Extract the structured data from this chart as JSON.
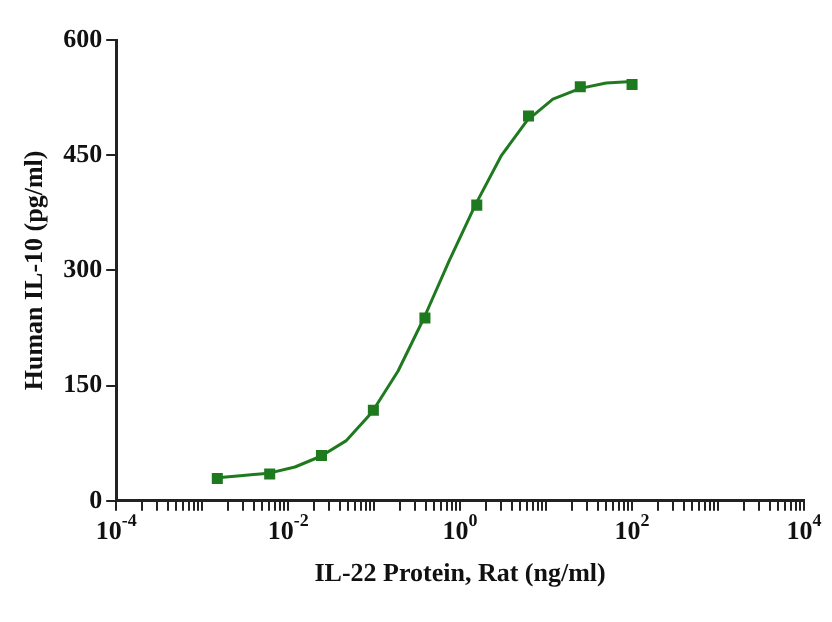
{
  "chart_data": {
    "type": "scatter",
    "xlabel": "IL-22 Protein, Rat (ng/ml)",
    "ylabel": "Human IL-10 (pg/ml)",
    "log": "x",
    "grid": false,
    "legend": false,
    "xlim": [
      0.0001,
      10000
    ],
    "ylim": [
      0,
      600
    ],
    "yticks": [
      0,
      150,
      300,
      450,
      600
    ],
    "xticks": [
      {
        "value": 0.0001,
        "label": "10$^{-4}$"
      },
      {
        "value": 0.0002,
        "label": null
      },
      {
        "value": 0.0003,
        "label": null
      },
      {
        "value": 0.0004,
        "label": null
      },
      {
        "value": 0.0005,
        "label": null
      },
      {
        "value": 0.0006,
        "label": null
      },
      {
        "value": 0.0007,
        "label": null
      },
      {
        "value": 0.0008,
        "label": null
      },
      {
        "value": 0.0009,
        "label": null
      },
      {
        "value": 0.001,
        "label": null
      },
      {
        "value": 0.002,
        "label": null
      },
      {
        "value": 0.003,
        "label": null
      },
      {
        "value": 0.004,
        "label": null
      },
      {
        "value": 0.005,
        "label": null
      },
      {
        "value": 0.006,
        "label": null
      },
      {
        "value": 0.007,
        "label": null
      },
      {
        "value": 0.008,
        "label": null
      },
      {
        "value": 0.009,
        "label": null
      },
      {
        "value": 0.01,
        "label": "10$^{-2}$"
      },
      {
        "value": 0.02,
        "label": null
      },
      {
        "value": 0.03,
        "label": null
      },
      {
        "value": 0.04,
        "label": null
      },
      {
        "value": 0.05,
        "label": null
      },
      {
        "value": 0.06,
        "label": null
      },
      {
        "value": 0.07,
        "label": null
      },
      {
        "value": 0.08,
        "label": null
      },
      {
        "value": 0.09,
        "label": null
      },
      {
        "value": 0.1,
        "label": null
      },
      {
        "value": 0.2,
        "label": null
      },
      {
        "value": 0.3,
        "label": null
      },
      {
        "value": 0.4,
        "label": null
      },
      {
        "value": 0.5,
        "label": null
      },
      {
        "value": 0.6,
        "label": null
      },
      {
        "value": 0.7,
        "label": null
      },
      {
        "value": 0.8,
        "label": null
      },
      {
        "value": 0.9,
        "label": null
      },
      {
        "value": 1,
        "label": "10$^{0}$"
      },
      {
        "value": 2,
        "label": null
      },
      {
        "value": 3,
        "label": null
      },
      {
        "value": 4,
        "label": null
      },
      {
        "value": 5,
        "label": null
      },
      {
        "value": 6,
        "label": null
      },
      {
        "value": 7,
        "label": null
      },
      {
        "value": 8,
        "label": null
      },
      {
        "value": 9,
        "label": null
      },
      {
        "value": 10,
        "label": null
      },
      {
        "value": 20,
        "label": null
      },
      {
        "value": 30,
        "label": null
      },
      {
        "value": 40,
        "label": null
      },
      {
        "value": 50,
        "label": null
      },
      {
        "value": 60,
        "label": null
      },
      {
        "value": 70,
        "label": null
      },
      {
        "value": 80,
        "label": null
      },
      {
        "value": 90,
        "label": null
      },
      {
        "value": 100,
        "label": "10$^{2}$"
      },
      {
        "value": 200,
        "label": null
      },
      {
        "value": 300,
        "label": null
      },
      {
        "value": 400,
        "label": null
      },
      {
        "value": 500,
        "label": null
      },
      {
        "value": 600,
        "label": null
      },
      {
        "value": 700,
        "label": null
      },
      {
        "value": 800,
        "label": null
      },
      {
        "value": 900,
        "label": null
      },
      {
        "value": 1000,
        "label": null
      },
      {
        "value": 2000,
        "label": null
      },
      {
        "value": 3000,
        "label": null
      },
      {
        "value": 4000,
        "label": null
      },
      {
        "value": 5000,
        "label": null
      },
      {
        "value": 6000,
        "label": null
      },
      {
        "value": 7000,
        "label": null
      },
      {
        "value": 8000,
        "label": null
      },
      {
        "value": 9000,
        "label": null
      },
      {
        "value": 10000,
        "label": "10$^{4}$"
      }
    ],
    "series": [
      {
        "type": "line",
        "marker": "none",
        "color": "#1f7a1f",
        "x": [
          0.0015,
          0.003,
          0.006,
          0.012,
          0.024,
          0.047,
          0.094,
          0.19,
          0.38,
          0.75,
          1.5,
          3,
          6,
          12,
          25,
          50,
          100
        ],
        "values": [
          30,
          33,
          36,
          44,
          58,
          78,
          115,
          169,
          238,
          313,
          385,
          449,
          495,
          523,
          537,
          544,
          546
        ]
      },
      {
        "type": "scatter",
        "marker": "square",
        "color": "#1f7a1f",
        "x": [
          0.0015,
          0.0061,
          0.0244,
          0.098,
          0.39,
          1.5625,
          6.25,
          25,
          100
        ],
        "values": [
          29,
          35,
          59,
          118,
          238,
          385,
          501,
          539,
          542
        ]
      }
    ]
  }
}
